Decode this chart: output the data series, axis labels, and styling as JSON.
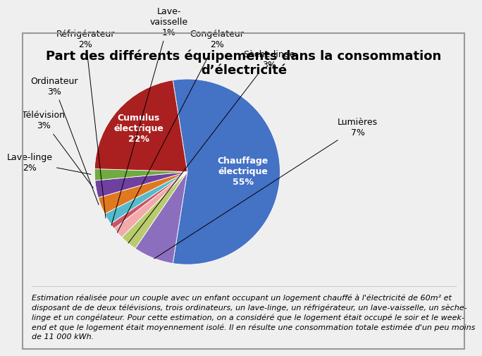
{
  "title": "Part des différents équipements dans la consommation\nd’électricité",
  "slices": [
    {
      "label": "Chauffage\nélectrique\n55%",
      "pct": 55,
      "color": "#4472C4",
      "inside": true
    },
    {
      "label": "Lumières\n7%",
      "pct": 7,
      "color": "#8B6FBE",
      "inside": false
    },
    {
      "label": "Sèche-linge\n3%",
      "pct": 3,
      "color": "#B8CC6E",
      "inside": false
    },
    {
      "label": "Congélateur\n2%",
      "pct": 2,
      "color": "#F2AAAA",
      "inside": false
    },
    {
      "label": "Lave-\nvaisselle\n1%",
      "pct": 1,
      "color": "#CC5566",
      "inside": false
    },
    {
      "label": "Réfrigérateur\n2%",
      "pct": 2,
      "color": "#55BBCC",
      "inside": false
    },
    {
      "label": "Ordinateur\n3%",
      "pct": 3,
      "color": "#E07820",
      "inside": false
    },
    {
      "label": "Télévision\n3%",
      "pct": 3,
      "color": "#7040A0",
      "inside": false
    },
    {
      "label": "Lave-linge\n2%",
      "pct": 2,
      "color": "#70AA40",
      "inside": false
    },
    {
      "label": "Cumulus\nélectrique\n22%",
      "pct": 22,
      "color": "#AA2020",
      "inside": true
    }
  ],
  "footnote": "Estimation réalisée pour un couple avec un enfant occupant un logement chauffé à l'électricité de 60m² et\ndisposant de de deux télévisions, trois ordinateurs, un lave-linge, un réfrigérateur, un lave-vaisselle, un sèche-\nlinge et un congélateur. Pour cette estimation, on a considéré que le logement était occupé le soir et le week-\nend et que le logement était moyennement isolé. Il en résulte une consommation totale estimée d'un peu moins\nde 11 000 kWh.",
  "title_fontsize": 13,
  "footnote_fontsize": 8,
  "bg_color": "#EFEFEF",
  "startangle": 99
}
